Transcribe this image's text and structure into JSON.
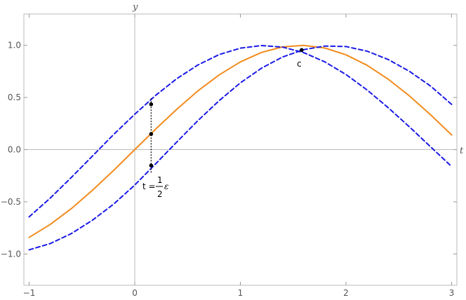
{
  "chart_data": {
    "type": "line",
    "xlabel": "t",
    "ylabel": "y",
    "xlim": [
      -1.05,
      3.05
    ],
    "ylim": [
      -1.3,
      1.3
    ],
    "x_ticks": [
      -1,
      0,
      1,
      2,
      3
    ],
    "x_tick_labels": [
      "-1",
      "0",
      "1",
      "2",
      "3"
    ],
    "y_ticks": [
      -1.0,
      -0.5,
      0.0,
      0.5,
      1.0
    ],
    "y_tick_labels": [
      "-1.0",
      "-0.5",
      "0.0",
      "0.5",
      "1.0"
    ],
    "grid": false,
    "series": [
      {
        "style": "solid",
        "color": "#f28c1e",
        "x": [
          -1.0,
          -0.8,
          -0.6,
          -0.4,
          -0.2,
          0.0,
          0.2,
          0.4,
          0.6,
          0.8,
          1.0,
          1.2,
          1.4,
          1.6,
          1.8,
          2.0,
          2.2,
          2.4,
          2.6,
          2.8,
          3.0
        ],
        "y": [
          -0.841,
          -0.717,
          -0.565,
          -0.389,
          -0.199,
          0.0,
          0.199,
          0.389,
          0.565,
          0.717,
          0.841,
          0.932,
          0.985,
          1.0,
          0.974,
          0.909,
          0.808,
          0.675,
          0.516,
          0.335,
          0.141
        ]
      },
      {
        "style": "dashed",
        "color": "#1a1ae6",
        "x": [
          -1.0,
          -0.8,
          -0.6,
          -0.4,
          -0.2,
          0.0,
          0.2,
          0.4,
          0.6,
          0.8,
          1.0,
          1.2,
          1.4,
          1.6,
          1.8,
          2.0,
          2.2,
          2.4,
          2.6,
          2.8,
          3.0
        ],
        "y": [
          -0.644,
          -0.464,
          -0.266,
          -0.061,
          0.145,
          0.339,
          0.522,
          0.682,
          0.813,
          0.912,
          0.973,
          0.998,
          0.983,
          0.93,
          0.841,
          0.72,
          0.572,
          0.402,
          0.219,
          0.028,
          -0.162
        ]
      },
      {
        "style": "dashed",
        "color": "#1a1ae6",
        "x": [
          -1.0,
          -0.8,
          -0.6,
          -0.4,
          -0.2,
          0.0,
          0.2,
          0.4,
          0.6,
          0.8,
          1.0,
          1.2,
          1.4,
          1.6,
          1.8,
          2.0,
          2.2,
          2.4,
          2.6,
          2.8,
          3.0
        ],
        "y": [
          -0.96,
          -0.9,
          -0.804,
          -0.676,
          -0.522,
          -0.339,
          -0.134,
          0.075,
          0.28,
          0.47,
          0.64,
          0.781,
          0.888,
          0.959,
          0.993,
          0.988,
          0.944,
          0.864,
          0.751,
          0.61,
          0.434
        ]
      }
    ],
    "points": [
      {
        "x": 0.155,
        "y": 0.435
      },
      {
        "x": 0.155,
        "y": 0.15
      },
      {
        "x": 0.155,
        "y": -0.152
      },
      {
        "x": 1.58,
        "y": 0.955
      }
    ],
    "vertical_segment": {
      "x": 0.155,
      "y_from": -0.22,
      "y_to": 0.5,
      "style": "dotted"
    },
    "annotations": {
      "t_label_prefix": "t =",
      "t_label_num": "1",
      "t_label_den": "2",
      "t_label_sym": "ε",
      "c_label": "c"
    }
  }
}
